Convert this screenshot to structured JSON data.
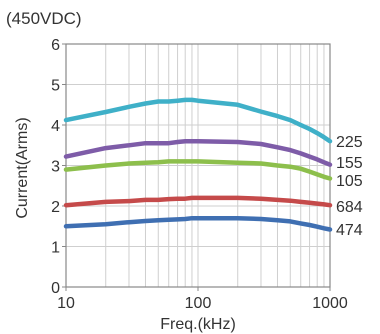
{
  "chart_data": {
    "type": "line",
    "title": "(450VDC)",
    "xlabel": "Freq.(kHz)",
    "ylabel": "Current(Arms)",
    "x_scale": "log",
    "xlim": [
      10,
      1000
    ],
    "ylim": [
      0,
      6
    ],
    "x_ticks": [
      10,
      100,
      1000
    ],
    "x_tick_labels": [
      "10",
      "100",
      "1000"
    ],
    "y_ticks": [
      0,
      1,
      2,
      3,
      4,
      5,
      6
    ],
    "y_tick_labels": [
      "0",
      "1",
      "2",
      "3",
      "4",
      "5",
      "6"
    ],
    "grid": true,
    "legend": "right-end labels",
    "x": [
      10,
      20,
      30,
      40,
      50,
      60,
      70,
      80,
      90,
      100,
      200,
      300,
      400,
      500,
      600,
      700,
      800,
      900,
      1000
    ],
    "series": [
      {
        "name": "225",
        "color": "#3fb0c8",
        "values": [
          4.12,
          4.32,
          4.45,
          4.53,
          4.58,
          4.58,
          4.6,
          4.62,
          4.62,
          4.6,
          4.5,
          4.33,
          4.22,
          4.12,
          4.0,
          3.9,
          3.8,
          3.7,
          3.6
        ]
      },
      {
        "name": "155",
        "color": "#7e5ca8",
        "values": [
          3.22,
          3.43,
          3.5,
          3.55,
          3.55,
          3.55,
          3.58,
          3.6,
          3.6,
          3.6,
          3.58,
          3.53,
          3.45,
          3.38,
          3.3,
          3.22,
          3.15,
          3.08,
          3.02
        ]
      },
      {
        "name": "105",
        "color": "#8dbf4c",
        "values": [
          2.9,
          3.0,
          3.05,
          3.07,
          3.08,
          3.1,
          3.1,
          3.1,
          3.1,
          3.1,
          3.07,
          3.05,
          3.0,
          2.97,
          2.92,
          2.85,
          2.78,
          2.72,
          2.68
        ]
      },
      {
        "name": "684",
        "color": "#c54a4a",
        "values": [
          2.02,
          2.1,
          2.12,
          2.15,
          2.15,
          2.17,
          2.18,
          2.18,
          2.2,
          2.2,
          2.2,
          2.18,
          2.15,
          2.13,
          2.1,
          2.08,
          2.06,
          2.04,
          2.02
        ]
      },
      {
        "name": "474",
        "color": "#3f6fb2",
        "values": [
          1.5,
          1.55,
          1.6,
          1.63,
          1.65,
          1.66,
          1.67,
          1.68,
          1.7,
          1.7,
          1.7,
          1.68,
          1.65,
          1.62,
          1.57,
          1.53,
          1.49,
          1.45,
          1.42
        ]
      }
    ]
  }
}
